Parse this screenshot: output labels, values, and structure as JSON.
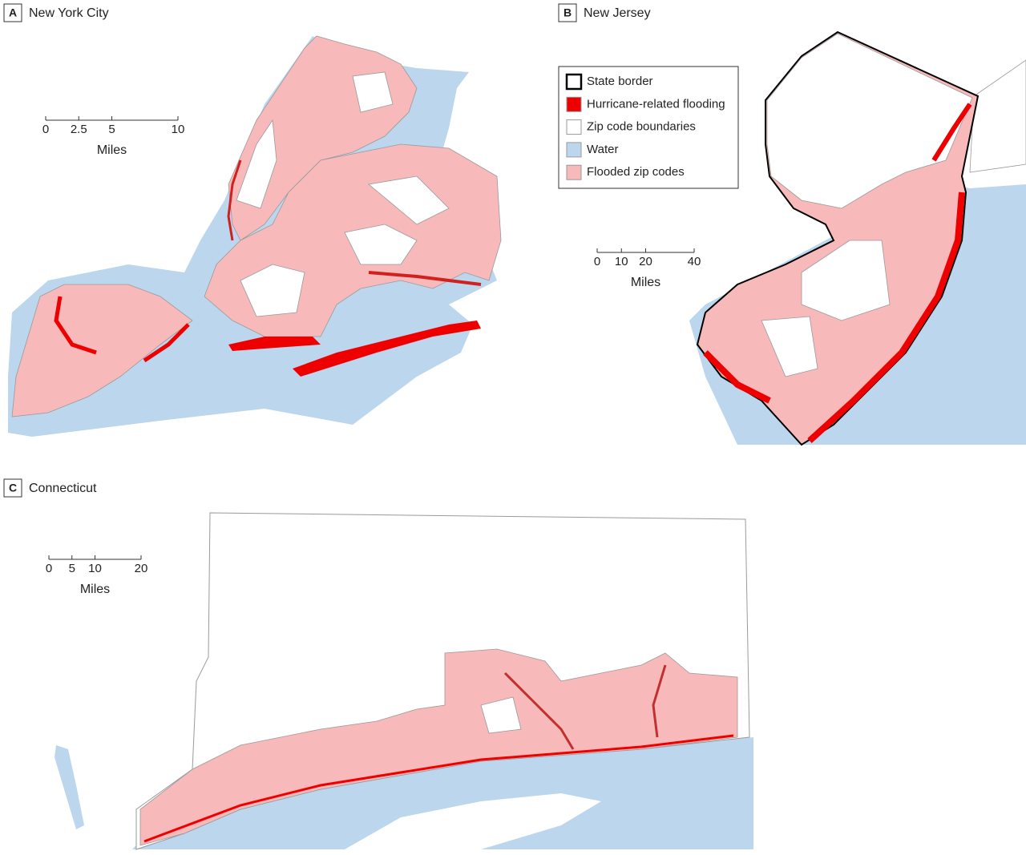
{
  "panels": [
    {
      "letter": "A",
      "title": "New York City",
      "scale": {
        "ticks": [
          0,
          2.5,
          5,
          10
        ],
        "unit": "Miles"
      }
    },
    {
      "letter": "B",
      "title": "New Jersey",
      "scale": {
        "ticks": [
          0,
          10,
          20,
          40
        ],
        "unit": "Miles"
      }
    },
    {
      "letter": "C",
      "title": "Connecticut",
      "scale": {
        "ticks": [
          0,
          5,
          10,
          20
        ],
        "unit": "Miles"
      }
    }
  ],
  "legend": [
    {
      "label": "State border",
      "color": "#ffffff"
    },
    {
      "label": "Hurricane-related flooding",
      "color": "#ee0000"
    },
    {
      "label": "Zip code boundaries",
      "color": "#ffffff"
    },
    {
      "label": "Water",
      "color": "#bcd6ee"
    },
    {
      "label": "Flooded zip codes",
      "color": "#f7b9ba"
    }
  ]
}
